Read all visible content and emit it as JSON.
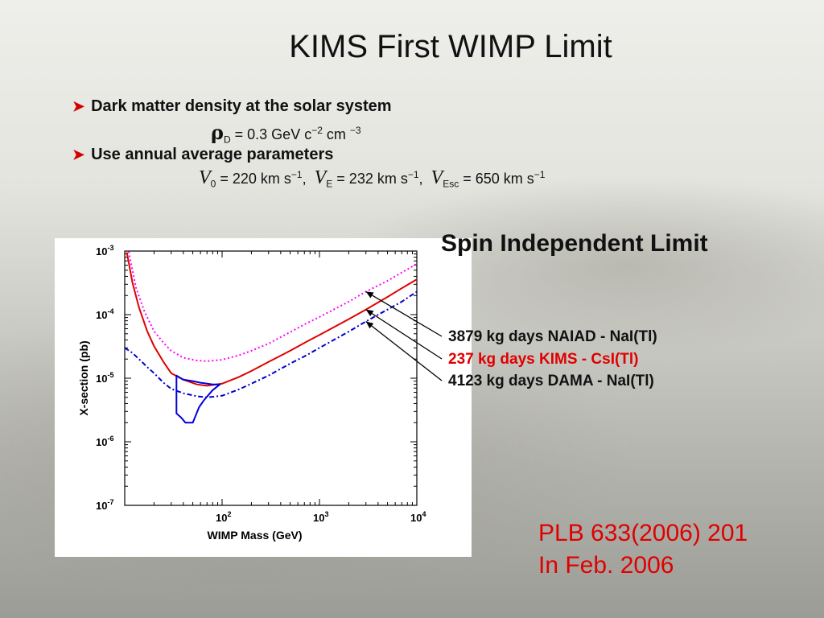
{
  "slide": {
    "title": "KIMS First WIMP Limit",
    "bullet1": "Dark matter density at the solar system",
    "formula1": {
      "symbol": "ρ",
      "sub": "D",
      "text_a": " = 0.3 GeV c",
      "exp_a": "−2",
      "text_b": " cm ",
      "exp_b": "−3"
    },
    "bullet2": "Use annual average parameters",
    "formula2": {
      "v0_sym": "V",
      "v0_sub": "0",
      "v0_val": " = 220 km s",
      "v0_exp": "−1",
      "ve_sym": "V",
      "ve_sub": "E",
      "ve_val": " = 232 km s",
      "ve_exp": "−1",
      "vesc_sym": "V",
      "vesc_sub": "Esc",
      "vesc_val": " = 650 km s",
      "vesc_exp": "−1"
    },
    "spin_title": "Spin Independent Limit",
    "legend_lines": [
      "3879 kg days  NAIAD - NaI(Tl)",
      "237 kg days  KIMS - CsI(Tl)",
      "4123 kg days  DAMA - NaI(Tl)"
    ],
    "reference": {
      "line1_prefix": "PLB ",
      "line1_volume": "633",
      "line1_suffix": "(2006) 201",
      "line2": "In Feb. 2006"
    },
    "colors": {
      "accent_red": "#e00000",
      "kims": "#e00000",
      "naiad": "#ff00ff",
      "dama": "#0000cc",
      "dama_region": "#0000dd"
    }
  },
  "chart_data": {
    "type": "line",
    "xlabel": "WIMP Mass (GeV)",
    "ylabel": "X-section (pb)",
    "xscale": "log",
    "yscale": "log",
    "xlim": [
      10,
      10000
    ],
    "ylim": [
      1e-07,
      0.001
    ],
    "x_ticks": [
      {
        "value": 100,
        "base": "10",
        "exp": "2"
      },
      {
        "value": 1000,
        "base": "10",
        "exp": "3"
      },
      {
        "value": 10000,
        "base": "10",
        "exp": "4"
      }
    ],
    "y_ticks": [
      {
        "value": 0.001,
        "base": "10",
        "exp": "-3"
      },
      {
        "value": 0.0001,
        "base": "10",
        "exp": "-4"
      },
      {
        "value": 1e-05,
        "base": "10",
        "exp": "-5"
      },
      {
        "value": 1e-06,
        "base": "10",
        "exp": "-6"
      },
      {
        "value": 1e-07,
        "base": "10",
        "exp": "-7"
      }
    ],
    "series": [
      {
        "name": "NAIAD - NaI(Tl)",
        "style": "dotted",
        "color": "#ff00ff",
        "points": [
          [
            11,
            0.00098
          ],
          [
            13,
            0.00027
          ],
          [
            16,
            0.00011
          ],
          [
            20,
            5.5e-05
          ],
          [
            25,
            3.6e-05
          ],
          [
            30,
            2.7e-05
          ],
          [
            40,
            2.1e-05
          ],
          [
            55,
            1.9e-05
          ],
          [
            70,
            1.85e-05
          ],
          [
            100,
            1.95e-05
          ],
          [
            150,
            2.3e-05
          ],
          [
            200,
            2.7e-05
          ],
          [
            300,
            3.5e-05
          ],
          [
            500,
            5.3e-05
          ],
          [
            700,
            7e-05
          ],
          [
            1000,
            9.2e-05
          ],
          [
            2000,
            0.00016
          ],
          [
            3000,
            0.00023
          ],
          [
            5000,
            0.00034
          ],
          [
            7000,
            0.00046
          ],
          [
            10000,
            0.00063
          ]
        ]
      },
      {
        "name": "KIMS - CsI(Tl)",
        "style": "solid",
        "color": "#e00000",
        "points": [
          [
            10.5,
            0.00096
          ],
          [
            12,
            0.00032
          ],
          [
            14,
            0.00013
          ],
          [
            17,
            5.5e-05
          ],
          [
            20,
            3.2e-05
          ],
          [
            25,
            1.8e-05
          ],
          [
            30,
            1.2e-05
          ],
          [
            40,
            9.5e-06
          ],
          [
            55,
            8e-06
          ],
          [
            70,
            7.6e-06
          ],
          [
            100,
            8.2e-06
          ],
          [
            150,
            1.05e-05
          ],
          [
            200,
            1.3e-05
          ],
          [
            300,
            1.8e-05
          ],
          [
            500,
            2.7e-05
          ],
          [
            700,
            3.6e-05
          ],
          [
            1000,
            4.8e-05
          ],
          [
            2000,
            8.5e-05
          ],
          [
            3000,
            0.00012
          ],
          [
            5000,
            0.00019
          ],
          [
            7000,
            0.00026
          ],
          [
            10000,
            0.00036
          ]
        ]
      },
      {
        "name": "DAMA - NaI(Tl)",
        "style": "dashdot",
        "color": "#0000cc",
        "points": [
          [
            10,
            3e-05
          ],
          [
            12,
            2.5e-05
          ],
          [
            14,
            2e-05
          ],
          [
            17,
            1.5e-05
          ],
          [
            20,
            1.2e-05
          ],
          [
            25,
            8.5e-06
          ],
          [
            30,
            6.8e-06
          ],
          [
            40,
            5.8e-06
          ],
          [
            55,
            5.2e-06
          ],
          [
            70,
            5e-06
          ],
          [
            100,
            5.3e-06
          ],
          [
            150,
            6.7e-06
          ],
          [
            200,
            8.2e-06
          ],
          [
            300,
            1.1e-05
          ],
          [
            500,
            1.7e-05
          ],
          [
            700,
            2.2e-05
          ],
          [
            1000,
            3e-05
          ],
          [
            2000,
            5.4e-05
          ],
          [
            3000,
            7.8e-05
          ],
          [
            5000,
            0.00012
          ],
          [
            7000,
            0.00016
          ],
          [
            10000,
            0.00023
          ]
        ]
      }
    ],
    "regions": [
      {
        "name": "DAMA allowed region",
        "color": "#0000dd",
        "points": [
          [
            34,
            1.1e-05
          ],
          [
            40,
            9.5e-06
          ],
          [
            50,
            9e-06
          ],
          [
            60,
            8.5e-06
          ],
          [
            80,
            8e-06
          ],
          [
            95,
            8e-06
          ],
          [
            80,
            6.5e-06
          ],
          [
            65,
            4.5e-06
          ],
          [
            58,
            3.5e-06
          ],
          [
            50,
            2e-06
          ],
          [
            42,
            2e-06
          ],
          [
            38,
            2.4e-06
          ],
          [
            34,
            2.8e-06
          ],
          [
            34,
            1.1e-05
          ]
        ]
      }
    ]
  }
}
